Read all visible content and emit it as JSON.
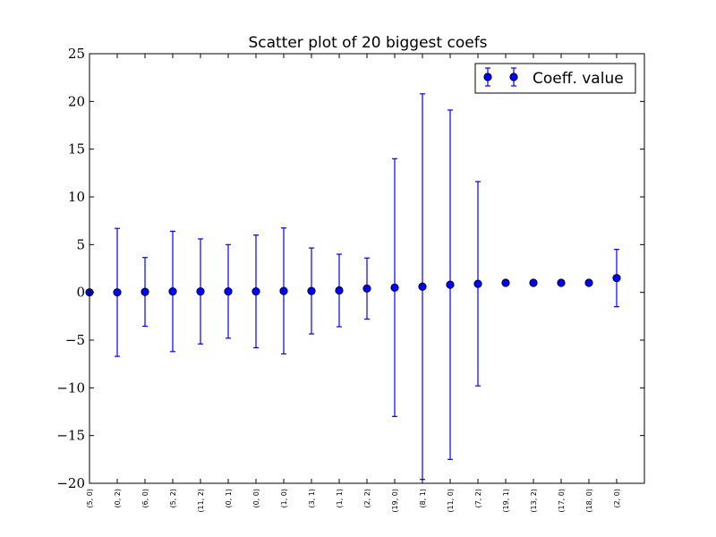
{
  "chart_data": {
    "type": "scatter",
    "title": "Scatter plot of 20 biggest coefs",
    "xlabel": "",
    "ylabel": "",
    "ylim": [
      -20,
      25
    ],
    "yticks": [
      -20,
      -15,
      -10,
      -5,
      0,
      5,
      10,
      15,
      20,
      25
    ],
    "ytick_labels": [
      "−20",
      "−15",
      "−10",
      "−5",
      "0",
      "5",
      "10",
      "15",
      "20",
      "25"
    ],
    "grid": false,
    "legend_position": "top-right",
    "categories": [
      "(5, 0)",
      "(0, 2)",
      "(6, 0)",
      "(5, 2)",
      "(11, 2)",
      "(0, 1)",
      "(0, 0)",
      "(1, 0)",
      "(3, 1)",
      "(1, 1)",
      "(2, 2)",
      "(19, 0)",
      "(8, 1)",
      "(11, 0)",
      "(7, 2)",
      "(19, 1)",
      "(13, 2)",
      "(17, 0)",
      "(18, 0)",
      "(2, 0)"
    ],
    "series": [
      {
        "name": "Coeff. value",
        "color": "#0000ff",
        "values": [
          0.0,
          0.0,
          0.05,
          0.1,
          0.1,
          0.1,
          0.1,
          0.15,
          0.15,
          0.2,
          0.4,
          0.5,
          0.6,
          0.8,
          0.9,
          1.0,
          1.0,
          1.0,
          1.0,
          1.5
        ],
        "errors": [
          0.0,
          6.7,
          3.6,
          6.3,
          5.5,
          4.9,
          5.9,
          6.6,
          4.5,
          3.8,
          3.2,
          13.5,
          20.2,
          18.3,
          10.7,
          0.0,
          0.0,
          0.0,
          0.0,
          3.0
        ]
      }
    ]
  }
}
